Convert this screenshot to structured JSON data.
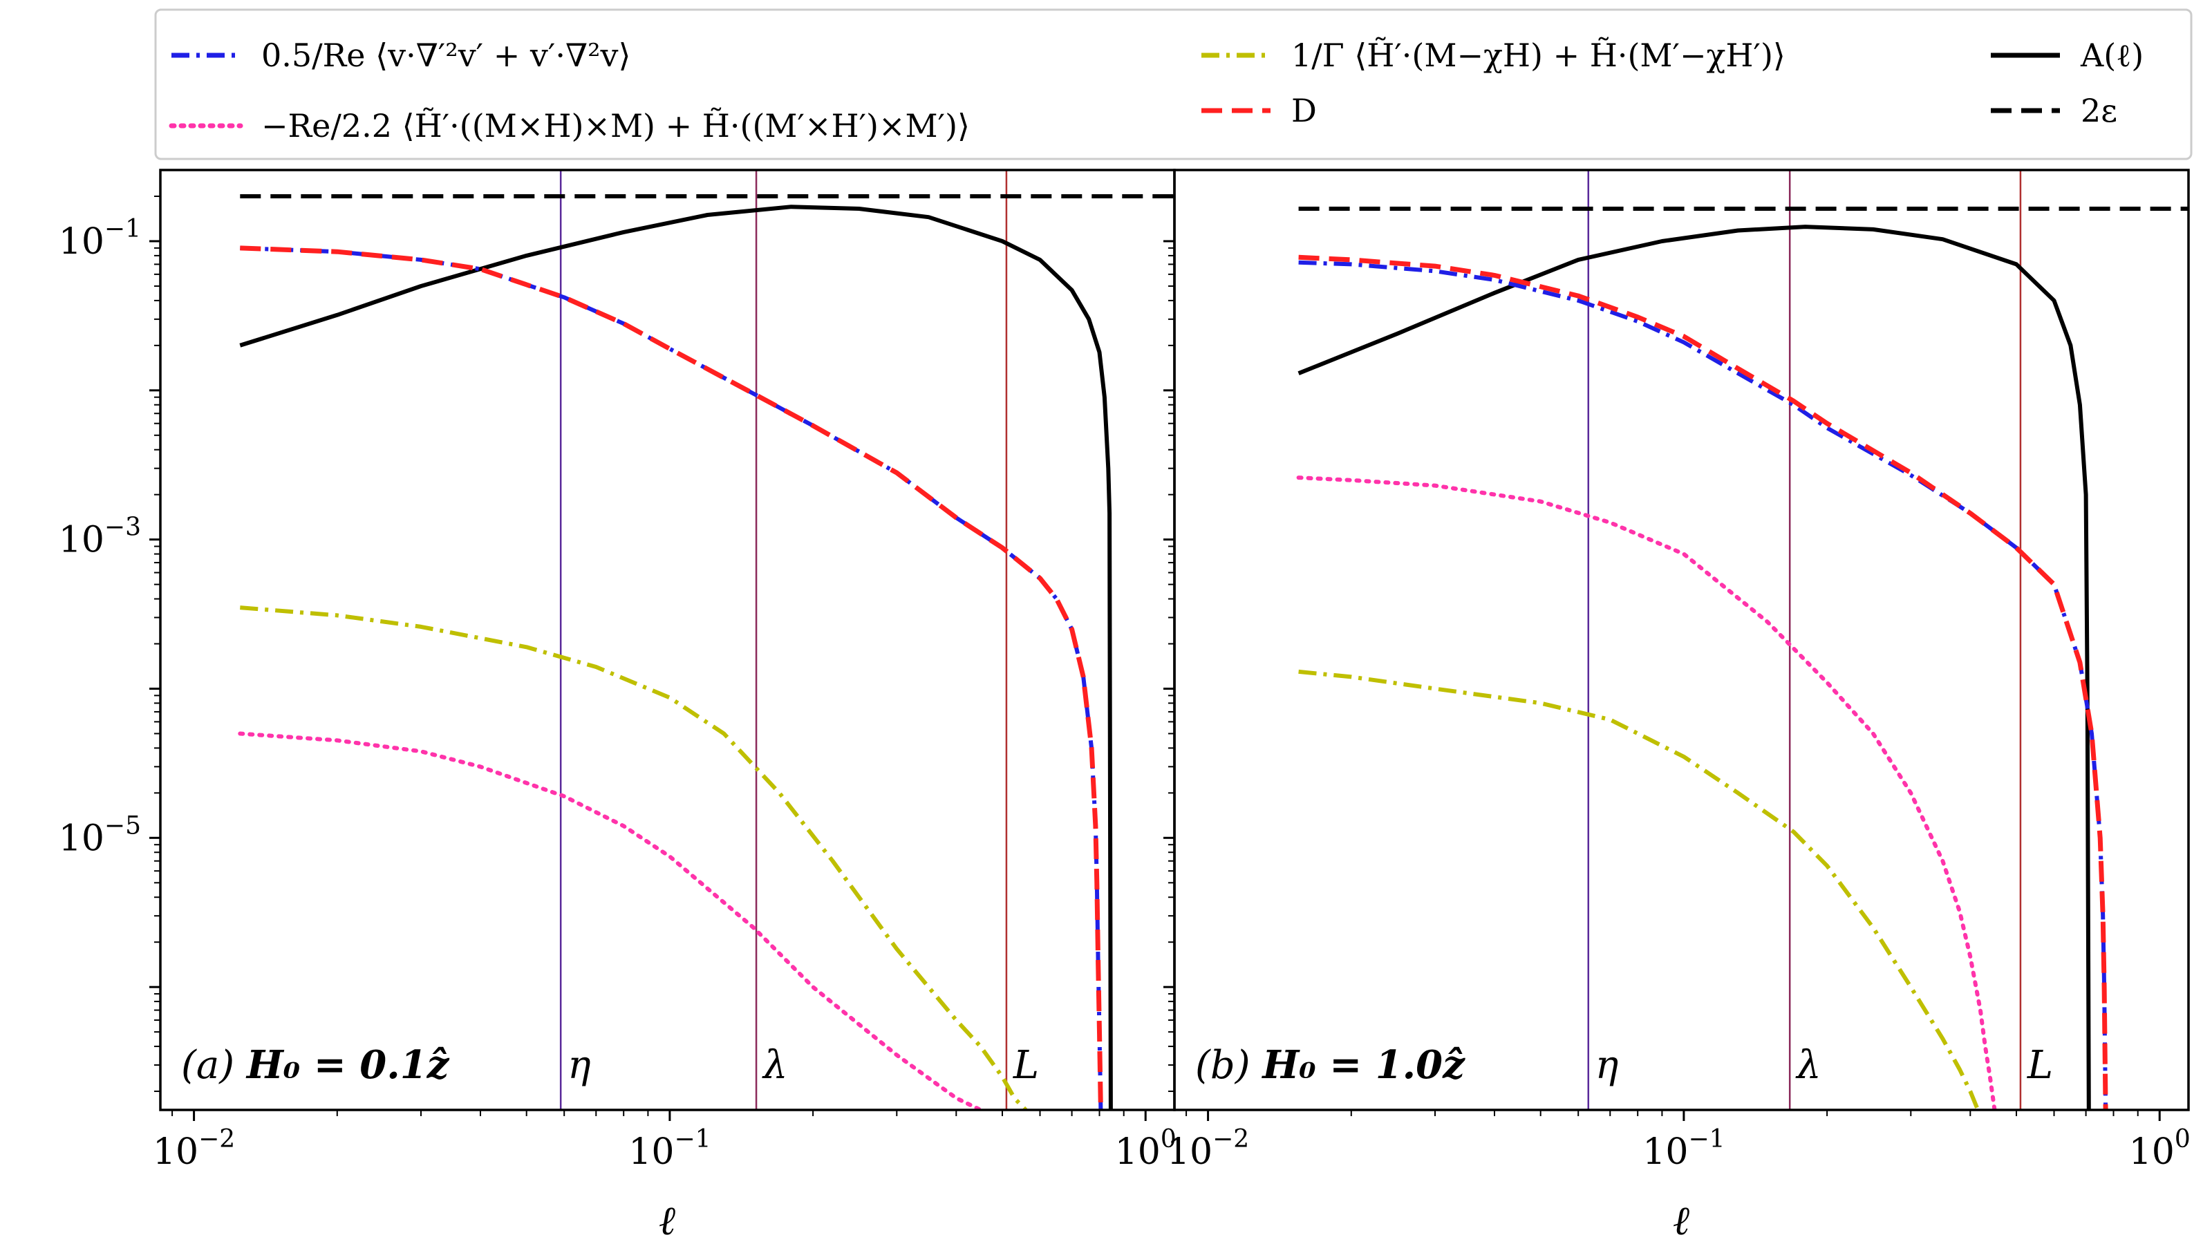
{
  "chart_data": {
    "type": "line",
    "x_scale": "log",
    "y_scale": "log",
    "xlabel": "ℓ",
    "ylim": [
      1.5e-07,
      0.3
    ],
    "x_ticks": [
      {
        "value": 0.01,
        "base": "10",
        "exp": "−2"
      },
      {
        "value": 0.1,
        "base": "10",
        "exp": "−1"
      },
      {
        "value": 1,
        "base": "10",
        "exp": "0"
      }
    ],
    "y_ticks": [
      {
        "value": 0.1,
        "base": "10",
        "exp": "−1"
      },
      {
        "value": 0.001,
        "base": "10",
        "exp": "−3"
      },
      {
        "value": 1e-05,
        "base": "10",
        "exp": "−5"
      }
    ],
    "legend": [
      {
        "key": "viscous",
        "label": "0.5/Re ⟨v·∇′²v′ + v′·∇²v⟩",
        "color": "#1f1fe6",
        "dash": "dashdot"
      },
      {
        "key": "magnetic",
        "label": "−Re/2.2 ⟨H̃′·((M×H)×M) + H̃·((M′×H′)×M′)⟩",
        "color": "#ff33aa",
        "dash": "dotted"
      },
      {
        "key": "relax",
        "label": "1/Γ ⟨H̃′·(M−χH) + H̃·(M′−χH′)⟩",
        "color": "#bfbf00",
        "dash": "dashdot"
      },
      {
        "key": "D",
        "label": "D",
        "color": "#ff2020",
        "dash": "dashed"
      },
      {
        "key": "A",
        "label": "A(ℓ)",
        "color": "#000000",
        "dash": "solid"
      },
      {
        "key": "eps",
        "label": "2ε",
        "color": "#000000",
        "dash": "dashed"
      }
    ],
    "panels": [
      {
        "id": "a",
        "title_prefix": "(a)",
        "title_field": "H₀ = 0.1ẑ",
        "xlim": [
          0.0085,
          1.15
        ],
        "markers": [
          {
            "label": "η",
            "x": 0.059,
            "color": "#5a2a9a"
          },
          {
            "label": "λ",
            "x": 0.152,
            "color": "#8b2a5a"
          },
          {
            "label": "L",
            "x": 0.51,
            "color": "#b03030"
          }
        ],
        "series": [
          {
            "key": "eps",
            "x": [
              0.0125,
              1.15
            ],
            "y": [
              0.2,
              0.2
            ]
          },
          {
            "key": "A",
            "x": [
              0.0125,
              0.02,
              0.03,
              0.05,
              0.08,
              0.12,
              0.18,
              0.25,
              0.35,
              0.5,
              0.6,
              0.7,
              0.76,
              0.8,
              0.82,
              0.835,
              0.84,
              0.845
            ],
            "y": [
              0.02,
              0.032,
              0.05,
              0.08,
              0.115,
              0.15,
              0.17,
              0.165,
              0.145,
              0.1,
              0.075,
              0.047,
              0.03,
              0.018,
              0.009,
              0.003,
              0.0015,
              1.5e-07
            ]
          },
          {
            "key": "viscous",
            "x": [
              0.0125,
              0.02,
              0.03,
              0.04,
              0.06,
              0.08,
              0.1,
              0.15,
              0.2,
              0.3,
              0.4,
              0.5,
              0.6,
              0.65,
              0.7,
              0.74,
              0.77,
              0.785,
              0.79,
              0.795,
              0.8,
              0.805
            ],
            "y": [
              0.09,
              0.085,
              0.075,
              0.065,
              0.042,
              0.028,
              0.019,
              0.0095,
              0.0058,
              0.0028,
              0.0014,
              0.00088,
              0.00055,
              0.0004,
              0.00025,
              0.00012,
              4e-05,
              1.2e-05,
              5e-06,
              1.5e-06,
              5e-07,
              1.5e-07
            ]
          },
          {
            "key": "D",
            "x": [
              0.0125,
              0.02,
              0.03,
              0.04,
              0.06,
              0.08,
              0.1,
              0.15,
              0.2,
              0.3,
              0.4,
              0.5,
              0.6,
              0.65,
              0.7,
              0.74,
              0.77,
              0.785,
              0.79,
              0.795,
              0.8,
              0.805
            ],
            "y": [
              0.09,
              0.085,
              0.075,
              0.065,
              0.042,
              0.028,
              0.019,
              0.0095,
              0.0058,
              0.0028,
              0.0014,
              0.00088,
              0.00055,
              0.0004,
              0.00025,
              0.00012,
              4e-05,
              1.2e-05,
              5e-06,
              1.5e-06,
              5e-07,
              1.5e-07
            ]
          },
          {
            "key": "relax",
            "x": [
              0.0125,
              0.02,
              0.03,
              0.05,
              0.07,
              0.1,
              0.13,
              0.17,
              0.22,
              0.3,
              0.4,
              0.45,
              0.5,
              0.53,
              0.56
            ],
            "y": [
              0.00035,
              0.00031,
              0.00026,
              0.00019,
              0.00014,
              8.7e-05,
              5e-05,
              2e-05,
              7e-06,
              1.8e-06,
              6e-07,
              4e-07,
              2.5e-07,
              1.8e-07,
              1.5e-07
            ]
          },
          {
            "key": "magnetic",
            "x": [
              0.0125,
              0.02,
              0.03,
              0.04,
              0.06,
              0.08,
              0.1,
              0.15,
              0.2,
              0.3,
              0.4,
              0.45
            ],
            "y": [
              5e-05,
              4.5e-05,
              3.8e-05,
              3e-05,
              1.9e-05,
              1.2e-05,
              7.5e-06,
              2.5e-06,
              1e-06,
              3.5e-07,
              1.8e-07,
              1.5e-07
            ]
          }
        ]
      },
      {
        "id": "b",
        "title_prefix": "(b)",
        "title_field": "H₀ = 1.0ẑ",
        "xlim": [
          0.0085,
          1.15
        ],
        "markers": [
          {
            "label": "η",
            "x": 0.063,
            "color": "#5a2a9a"
          },
          {
            "label": "λ",
            "x": 0.167,
            "color": "#8b2a5a"
          },
          {
            "label": "L",
            "x": 0.51,
            "color": "#b03030"
          }
        ],
        "series": [
          {
            "key": "eps",
            "x": [
              0.0155,
              1.15
            ],
            "y": [
              0.165,
              0.165
            ]
          },
          {
            "key": "A",
            "x": [
              0.0155,
              0.025,
              0.04,
              0.06,
              0.09,
              0.13,
              0.18,
              0.25,
              0.35,
              0.5,
              0.6,
              0.65,
              0.68,
              0.7,
              0.705,
              0.71
            ],
            "y": [
              0.013,
              0.024,
              0.045,
              0.075,
              0.1,
              0.118,
              0.125,
              0.12,
              0.103,
              0.07,
              0.04,
              0.02,
              0.008,
              0.002,
              0.0001,
              1.5e-07
            ]
          },
          {
            "key": "viscous",
            "x": [
              0.0155,
              0.02,
              0.03,
              0.04,
              0.06,
              0.08,
              0.1,
              0.13,
              0.17,
              0.2,
              0.3,
              0.4,
              0.5,
              0.6,
              0.68,
              0.72,
              0.75,
              0.76,
              0.765,
              0.77
            ],
            "y": [
              0.072,
              0.07,
              0.063,
              0.055,
              0.04,
              0.029,
              0.021,
              0.013,
              0.008,
              0.0056,
              0.0027,
              0.0015,
              0.00088,
              0.0005,
              0.00015,
              5e-05,
              1e-05,
              3e-06,
              1e-06,
              1.5e-07
            ]
          },
          {
            "key": "D",
            "x": [
              0.0155,
              0.02,
              0.03,
              0.04,
              0.06,
              0.08,
              0.1,
              0.13,
              0.17,
              0.2,
              0.3,
              0.4,
              0.5,
              0.6,
              0.68,
              0.72,
              0.75,
              0.76,
              0.765,
              0.77
            ],
            "y": [
              0.078,
              0.075,
              0.068,
              0.059,
              0.043,
              0.031,
              0.023,
              0.014,
              0.0085,
              0.006,
              0.0028,
              0.0015,
              0.00088,
              0.0005,
              0.00015,
              5e-05,
              1e-05,
              3e-06,
              1e-06,
              1.5e-07
            ]
          },
          {
            "key": "magnetic",
            "x": [
              0.0155,
              0.02,
              0.03,
              0.05,
              0.07,
              0.1,
              0.15,
              0.2,
              0.25,
              0.3,
              0.35,
              0.38,
              0.4,
              0.42,
              0.43,
              0.44,
              0.45
            ],
            "y": [
              0.0026,
              0.0025,
              0.0023,
              0.0018,
              0.0013,
              0.0008,
              0.00028,
              0.00011,
              5e-05,
              2e-05,
              7e-06,
              3.2e-06,
              1.6e-06,
              7e-07,
              4e-07,
              2.5e-07,
              1.5e-07
            ]
          },
          {
            "key": "relax",
            "x": [
              0.0155,
              0.02,
              0.03,
              0.05,
              0.07,
              0.1,
              0.13,
              0.17,
              0.2,
              0.25,
              0.3,
              0.35,
              0.38,
              0.4,
              0.415
            ],
            "y": [
              0.00013,
              0.00012,
              0.0001,
              8e-05,
              6.2e-05,
              3.5e-05,
              2e-05,
              1.1e-05,
              6.5e-06,
              2.5e-06,
              1e-06,
              4.5e-07,
              2.8e-07,
              2e-07,
              1.5e-07
            ]
          }
        ]
      }
    ]
  }
}
